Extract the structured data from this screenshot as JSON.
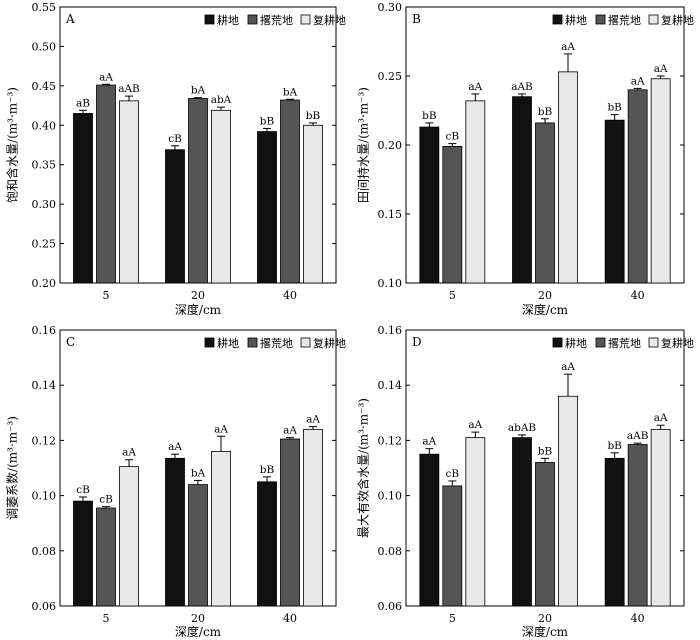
{
  "legend": [
    "耕地",
    "撂荒地",
    "复耕地"
  ],
  "series_colors": [
    "#111111",
    "#555555",
    "#e8e8e8"
  ],
  "chart_data": [
    {
      "type": "bar",
      "panel": "A",
      "categories": [
        "5",
        "20",
        "40"
      ],
      "xlabel": "深度/cm",
      "ylabel": "饱和含水量/(m³·m⁻³)",
      "ylim": [
        0.2,
        0.55
      ],
      "yticks": [
        "0.20",
        "0.25",
        "0.30",
        "0.35",
        "0.40",
        "0.45",
        "0.50",
        "0.55"
      ],
      "legend_position": "top-right",
      "series": [
        {
          "name": "耕地",
          "values": [
            0.415,
            0.369,
            0.392
          ],
          "errors": [
            0.004,
            0.005,
            0.004
          ],
          "labels": [
            "aB",
            "cB",
            "bB"
          ]
        },
        {
          "name": "撂荒地",
          "values": [
            0.451,
            0.434,
            0.432
          ],
          "errors": [
            0.001,
            0.001,
            0.001
          ],
          "labels": [
            "aA",
            "bA",
            "bA"
          ]
        },
        {
          "name": "复耕地",
          "values": [
            0.431,
            0.419,
            0.4
          ],
          "errors": [
            0.006,
            0.004,
            0.003
          ],
          "labels": [
            "aAB",
            "abA",
            "bB"
          ]
        }
      ]
    },
    {
      "type": "bar",
      "panel": "B",
      "categories": [
        "5",
        "20",
        "40"
      ],
      "xlabel": "深度/cm",
      "ylabel": "田间持水量/(m³·m⁻³)",
      "ylim": [
        0.1,
        0.3
      ],
      "yticks": [
        "0.10",
        "0.15",
        "0.20",
        "0.25",
        "0.30"
      ],
      "legend_position": "top-right",
      "series": [
        {
          "name": "耕地",
          "values": [
            0.213,
            0.235,
            0.218
          ],
          "errors": [
            0.003,
            0.002,
            0.004
          ],
          "labels": [
            "bB",
            "aAB",
            "bB"
          ]
        },
        {
          "name": "撂荒地",
          "values": [
            0.199,
            0.216,
            0.24
          ],
          "errors": [
            0.002,
            0.003,
            0.001
          ],
          "labels": [
            "cB",
            "bB",
            "aA"
          ]
        },
        {
          "name": "复耕地",
          "values": [
            0.232,
            0.253,
            0.248
          ],
          "errors": [
            0.005,
            0.013,
            0.002
          ],
          "labels": [
            "aA",
            "aA",
            "aA"
          ]
        }
      ]
    },
    {
      "type": "bar",
      "panel": "C",
      "categories": [
        "5",
        "20",
        "40"
      ],
      "xlabel": "深度/cm",
      "ylabel": "调萎系数/(m³·m⁻³)",
      "ylim": [
        0.06,
        0.16
      ],
      "yticks": [
        "0.06",
        "0.08",
        "0.10",
        "0.12",
        "0.14",
        "0.16"
      ],
      "legend_position": "top-right",
      "series": [
        {
          "name": "耕地",
          "values": [
            0.098,
            0.1135,
            0.105
          ],
          "errors": [
            0.0015,
            0.0015,
            0.0018
          ],
          "labels": [
            "cB",
            "aA",
            "bB"
          ]
        },
        {
          "name": "撂荒地",
          "values": [
            0.0955,
            0.104,
            0.1205
          ],
          "errors": [
            0.0005,
            0.0015,
            0.0005
          ],
          "labels": [
            "cB",
            "bA",
            "aA"
          ]
        },
        {
          "name": "复耕地",
          "values": [
            0.1105,
            0.116,
            0.124
          ],
          "errors": [
            0.0025,
            0.0055,
            0.001
          ],
          "labels": [
            "aA",
            "aA",
            "aA"
          ]
        }
      ]
    },
    {
      "type": "bar",
      "panel": "D",
      "categories": [
        "5",
        "20",
        "40"
      ],
      "xlabel": "深度/cm",
      "ylabel": "最大有效含水量/(m³·m⁻³)",
      "ylim": [
        0.06,
        0.16
      ],
      "yticks": [
        "0.06",
        "0.08",
        "0.10",
        "0.12",
        "0.14",
        "0.16"
      ],
      "legend_position": "top-right",
      "series": [
        {
          "name": "耕地",
          "values": [
            0.115,
            0.121,
            0.1135
          ],
          "errors": [
            0.002,
            0.001,
            0.002
          ],
          "labels": [
            "aA",
            "abAB",
            "bB"
          ]
        },
        {
          "name": "撂荒地",
          "values": [
            0.1035,
            0.112,
            0.1185
          ],
          "errors": [
            0.0018,
            0.0015,
            0.0005
          ],
          "labels": [
            "cB",
            "bB",
            "aAB"
          ]
        },
        {
          "name": "复耕地",
          "values": [
            0.121,
            0.136,
            0.124
          ],
          "errors": [
            0.002,
            0.008,
            0.0015
          ],
          "labels": [
            "aA",
            "aA",
            "aA"
          ]
        }
      ]
    }
  ]
}
